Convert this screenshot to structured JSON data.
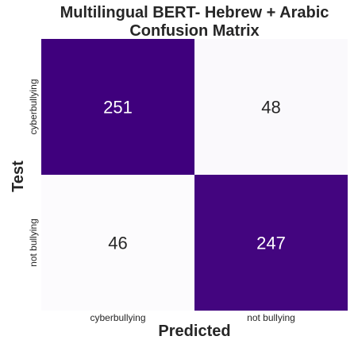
{
  "chart_data": {
    "type": "heatmap",
    "title_lines": [
      "Multilingual BERT- Hebrew + Arabic",
      "Confusion Matrix"
    ],
    "xlabel": "Predicted",
    "ylabel": "Test",
    "x_categories": [
      "cyberbullying",
      "not bullying"
    ],
    "y_categories": [
      "cyberbullying",
      "not bullying"
    ],
    "values": [
      [
        251,
        48
      ],
      [
        46,
        247
      ]
    ],
    "colors": {
      "high": "#3f007d",
      "low": "#fcfbfd",
      "text_on_high": "#ffffff",
      "text_on_low": "#262626"
    },
    "colorbar": false,
    "grid": false
  }
}
